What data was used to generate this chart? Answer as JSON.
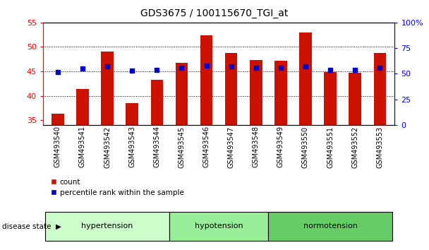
{
  "title": "GDS3675 / 100115670_TGI_at",
  "samples": [
    "GSM493540",
    "GSM493541",
    "GSM493542",
    "GSM493543",
    "GSM493544",
    "GSM493545",
    "GSM493546",
    "GSM493547",
    "GSM493548",
    "GSM493549",
    "GSM493550",
    "GSM493551",
    "GSM493552",
    "GSM493553"
  ],
  "bar_values": [
    36.3,
    41.4,
    49.0,
    38.5,
    43.2,
    46.7,
    52.4,
    48.8,
    47.3,
    47.2,
    53.0,
    44.9,
    44.7,
    48.8
  ],
  "blue_dot_pct": [
    52,
    55,
    57,
    53,
    54,
    56,
    58,
    57,
    56,
    56,
    57,
    54,
    54,
    56
  ],
  "groups": [
    {
      "label": "hypertension",
      "start": 0,
      "end": 5,
      "color": "#ccffcc"
    },
    {
      "label": "hypotension",
      "start": 5,
      "end": 9,
      "color": "#99ee99"
    },
    {
      "label": "normotension",
      "start": 9,
      "end": 14,
      "color": "#66cc66"
    }
  ],
  "ylim_left": [
    34,
    55
  ],
  "ylim_right": [
    0,
    100
  ],
  "yticks_left": [
    35,
    40,
    45,
    50,
    55
  ],
  "yticks_right": [
    0,
    25,
    50,
    75,
    100
  ],
  "bar_color": "#cc1100",
  "dot_color": "#0000cc",
  "bar_bottom": 34
}
